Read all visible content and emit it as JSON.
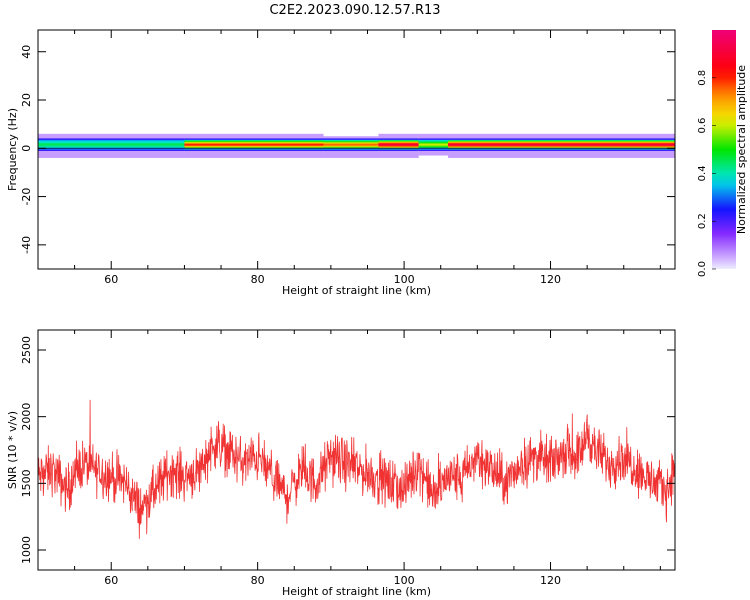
{
  "figure": {
    "title": "C2E2.2023.090.12.57.R13"
  },
  "chart_data": [
    {
      "type": "heatmap",
      "title": "C2E2.2023.090.12.57.R13",
      "xlabel": "Height of straight line (km)",
      "ylabel": "Frequency (Hz)",
      "xlim": [
        50,
        137
      ],
      "ylim": [
        -50,
        49
      ],
      "x_ticks": [
        60,
        80,
        100,
        120
      ],
      "y_ticks": [
        -40,
        -20,
        0,
        20,
        40
      ],
      "grid": false,
      "colorbar": {
        "label": "Normalized spectral amplitude",
        "range": [
          0,
          1
        ],
        "ticks": [
          0.0,
          0.2,
          0.4,
          0.6,
          0.8
        ],
        "colormap": "rainbow: violet-blue-cyan-green-yellow-orange-red-magenta"
      },
      "band": {
        "center_hz": 1.5,
        "core_halfwidth_hz": 2,
        "low_amplitude_halo_hz": [
          -4,
          6
        ],
        "segments": [
          {
            "x": [
              50,
              70
            ],
            "peak": 0.45
          },
          {
            "x": [
              70,
              89
            ],
            "peak": 0.8
          },
          {
            "x": [
              89,
              96.5
            ],
            "peak": 0.75,
            "halo_to_hz": 5
          },
          {
            "x": [
              96.5,
              102
            ],
            "peak": 0.9
          },
          {
            "x": [
              102,
              106
            ],
            "peak": 0.6,
            "dip_to_hz": -3
          },
          {
            "x": [
              106,
              137
            ],
            "peak": 0.9
          }
        ]
      }
    },
    {
      "type": "line",
      "xlabel": "Height of straight line (km)",
      "ylabel": "SNR (10 * v/v)",
      "xlim": [
        50,
        137
      ],
      "ylim": [
        850,
        2650
      ],
      "x_ticks": [
        60,
        80,
        100,
        120
      ],
      "y_ticks": [
        1000,
        1500,
        2000,
        2500
      ],
      "grid": false,
      "line_color": "#f03232",
      "series": [
        {
          "x": [
            50,
            52,
            54,
            56,
            58,
            60,
            62,
            64,
            66,
            68,
            70,
            72,
            74,
            76,
            78,
            80,
            82,
            84,
            86,
            88,
            90,
            92,
            94,
            96,
            98,
            100,
            102,
            104,
            106,
            108,
            110,
            112,
            114,
            116,
            118,
            120,
            122,
            124,
            125,
            126,
            128,
            130,
            132,
            134,
            136,
            137
          ],
          "values": [
            1550,
            1600,
            1450,
            1650,
            1600,
            1550,
            1500,
            1300,
            1450,
            1600,
            1550,
            1600,
            1800,
            1750,
            1650,
            1700,
            1550,
            1400,
            1600,
            1500,
            1700,
            1650,
            1600,
            1550,
            1500,
            1450,
            1650,
            1400,
            1550,
            1550,
            1700,
            1600,
            1500,
            1650,
            1700,
            1650,
            1750,
            1700,
            1900,
            1750,
            1650,
            1700,
            1600,
            1500,
            1450,
            1650
          ]
        }
      ]
    }
  ]
}
